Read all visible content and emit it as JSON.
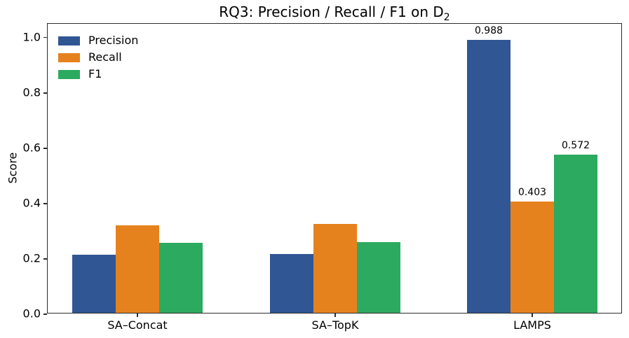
{
  "chart_data": {
    "type": "bar",
    "title": "RQ3: Precision / Recall / F1 on D₂",
    "title_parts": {
      "main": "RQ3: Precision / Recall / F1 on D",
      "subscript": "2"
    },
    "xlabel": "",
    "ylabel": "Score",
    "ylim": [
      0,
      1.05
    ],
    "yticks": [
      "0.0",
      "0.2",
      "0.4",
      "0.6",
      "0.8",
      "1.0"
    ],
    "grid": false,
    "legend_position": "upper left",
    "legend_frame": false,
    "categories": [
      "SA–Concat",
      "SA–TopK",
      "LAMPS"
    ],
    "series": [
      {
        "name": "Precision",
        "color": "#305694",
        "values": [
          0.21,
          0.213,
          0.988
        ],
        "bar_labels": [
          "",
          "",
          "0.988"
        ]
      },
      {
        "name": "Recall",
        "color": "#e6821e",
        "values": [
          0.317,
          0.322,
          0.403
        ],
        "bar_labels": [
          "",
          "",
          "0.403"
        ]
      },
      {
        "name": "F1",
        "color": "#2caa60",
        "values": [
          0.253,
          0.256,
          0.572
        ],
        "bar_labels": [
          "",
          "",
          "0.572"
        ]
      }
    ]
  }
}
